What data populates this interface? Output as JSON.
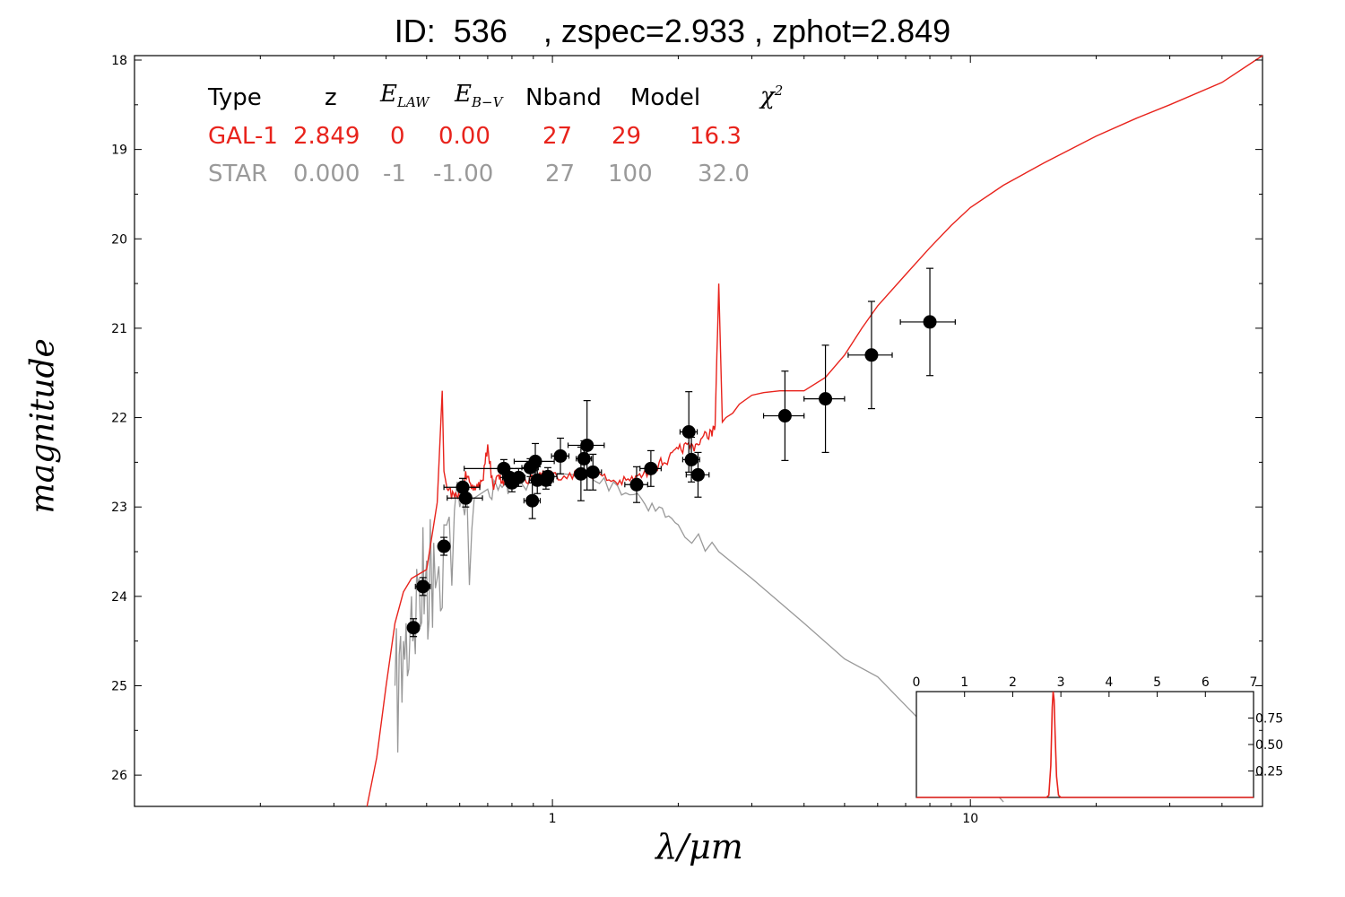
{
  "header": {
    "title": "ID:  536    , zspec=2.933 , zphot=2.849"
  },
  "legend": {
    "headers": [
      "Type",
      "z",
      "E",
      "LAW",
      "E",
      "B−V",
      "Nband",
      "Model",
      "χ",
      "2"
    ],
    "rows": [
      {
        "name": "gal",
        "cells": [
          "GAL-1",
          "2.849",
          "0",
          "0.00",
          "27",
          "29",
          "16.3"
        ],
        "color": "#e8231c"
      },
      {
        "name": "star",
        "cells": [
          "STAR",
          "0.000",
          "-1",
          "-1.00",
          "27",
          "100",
          "32.0"
        ],
        "color": "#9a9a9a"
      }
    ]
  },
  "chart_data": [
    {
      "type": "scatter",
      "title": "ID:  536    , zspec=2.933 , zphot=2.849",
      "xlabel": "λ/μm",
      "ylabel": "magnitude",
      "xscale": "log",
      "xlim": [
        0.1,
        50
      ],
      "ylim": [
        26.35,
        17.95
      ],
      "x_ticks": [
        "1",
        "10"
      ],
      "y_ticks": [
        "18",
        "19",
        "20",
        "21",
        "22",
        "23",
        "24",
        "25",
        "26"
      ],
      "series": [
        {
          "name": "GAL-1",
          "kind": "line",
          "color": "#e8231c",
          "x": [
            0.36,
            0.38,
            0.4,
            0.42,
            0.44,
            0.46,
            0.48,
            0.5,
            0.52,
            0.53,
            0.545,
            0.55,
            0.56,
            0.58,
            0.6,
            0.62,
            0.64,
            0.66,
            0.68,
            0.7,
            0.72,
            0.74,
            0.76,
            0.78,
            0.8,
            0.85,
            0.9,
            0.95,
            1.0,
            1.1,
            1.2,
            1.3,
            1.4,
            1.5,
            1.6,
            1.7,
            1.8,
            1.9,
            2.0,
            2.1,
            2.2,
            2.3,
            2.4,
            2.45,
            2.5,
            2.55,
            2.6,
            2.7,
            2.8,
            3.0,
            3.2,
            3.5,
            4.0,
            4.5,
            5.0,
            5.5,
            6.0,
            7.0,
            8.0,
            9.0,
            10.0,
            12.0,
            15.0,
            20.0,
            25.0,
            30.0,
            40.0,
            50.0
          ],
          "y": [
            26.4,
            25.8,
            25.0,
            24.3,
            23.95,
            23.8,
            23.75,
            23.7,
            23.2,
            22.95,
            21.7,
            22.6,
            22.8,
            22.85,
            22.88,
            22.6,
            22.8,
            22.75,
            22.7,
            22.3,
            22.75,
            22.65,
            22.7,
            22.7,
            22.62,
            22.7,
            22.65,
            22.6,
            22.62,
            22.62,
            22.6,
            22.63,
            22.7,
            22.7,
            22.65,
            22.6,
            22.5,
            22.45,
            22.35,
            22.3,
            22.3,
            22.2,
            22.15,
            22.1,
            20.5,
            22.05,
            22.0,
            21.95,
            21.85,
            21.75,
            21.72,
            21.7,
            21.7,
            21.55,
            21.3,
            21.0,
            20.75,
            20.4,
            20.1,
            19.85,
            19.65,
            19.4,
            19.15,
            18.85,
            18.65,
            18.5,
            18.25,
            17.95
          ]
        },
        {
          "name": "STAR",
          "kind": "line",
          "color": "#999999",
          "x": [
            0.42,
            0.44,
            0.46,
            0.48,
            0.5,
            0.52,
            0.55,
            0.6,
            0.65,
            0.7,
            0.75,
            0.8,
            0.9,
            1.0,
            1.2,
            1.4,
            1.6,
            1.8,
            2.0,
            2.5,
            3.0,
            4.0,
            5.0,
            6.0,
            8.0,
            10.0,
            12.0
          ],
          "y": [
            25.0,
            24.5,
            24.0,
            23.8,
            23.6,
            23.4,
            23.2,
            23.0,
            22.9,
            22.8,
            22.75,
            22.7,
            22.65,
            22.62,
            22.65,
            22.72,
            22.85,
            23.0,
            23.2,
            23.5,
            23.8,
            24.3,
            24.7,
            24.9,
            25.5,
            25.9,
            26.3
          ]
        },
        {
          "name": "observed",
          "kind": "points",
          "color": "#000000",
          "points": [
            {
              "x": 0.465,
              "y": 24.35,
              "xerr": 0.01,
              "yerr": 0.1
            },
            {
              "x": 0.49,
              "y": 23.89,
              "xerr": 0.02,
              "yerr": 0.1
            },
            {
              "x": 0.55,
              "y": 23.44,
              "xerr": 0.015,
              "yerr": 0.1
            },
            {
              "x": 0.61,
              "y": 22.78,
              "xerr": 0.06,
              "yerr": 0.1
            },
            {
              "x": 0.62,
              "y": 22.9,
              "xerr": 0.06,
              "yerr": 0.1
            },
            {
              "x": 0.765,
              "y": 22.57,
              "xerr": 0.15,
              "yerr": 0.1
            },
            {
              "x": 0.79,
              "y": 22.67,
              "xerr": 0.03,
              "yerr": 0.1
            },
            {
              "x": 0.8,
              "y": 22.73,
              "xerr": 0.03,
              "yerr": 0.1
            },
            {
              "x": 0.83,
              "y": 22.67,
              "xerr": 0.03,
              "yerr": 0.1
            },
            {
              "x": 0.885,
              "y": 22.56,
              "xerr": 0.04,
              "yerr": 0.1
            },
            {
              "x": 0.895,
              "y": 22.93,
              "xerr": 0.04,
              "yerr": 0.2
            },
            {
              "x": 0.91,
              "y": 22.49,
              "xerr": 0.1,
              "yerr": 0.2
            },
            {
              "x": 0.92,
              "y": 22.7,
              "xerr": 0.04,
              "yerr": 0.15
            },
            {
              "x": 0.965,
              "y": 22.7,
              "xerr": 0.04,
              "yerr": 0.1
            },
            {
              "x": 0.975,
              "y": 22.66,
              "xerr": 0.05,
              "yerr": 0.1
            },
            {
              "x": 1.045,
              "y": 22.43,
              "xerr": 0.05,
              "yerr": 0.2
            },
            {
              "x": 1.17,
              "y": 22.63,
              "xerr": 0.04,
              "yerr": 0.3
            },
            {
              "x": 1.19,
              "y": 22.46,
              "xerr": 0.05,
              "yerr": 0.2
            },
            {
              "x": 1.21,
              "y": 22.31,
              "xerr": 0.12,
              "yerr": 0.5
            },
            {
              "x": 1.25,
              "y": 22.61,
              "xerr": 0.06,
              "yerr": 0.2
            },
            {
              "x": 1.59,
              "y": 22.75,
              "xerr": 0.1,
              "yerr": 0.2
            },
            {
              "x": 1.72,
              "y": 22.57,
              "xerr": 0.1,
              "yerr": 0.2
            },
            {
              "x": 2.12,
              "y": 22.16,
              "xerr": 0.1,
              "yerr": 0.45
            },
            {
              "x": 2.15,
              "y": 22.47,
              "xerr": 0.1,
              "yerr": 0.25
            },
            {
              "x": 2.23,
              "y": 22.64,
              "xerr": 0.14,
              "yerr": 0.25
            },
            {
              "x": 3.6,
              "y": 21.98,
              "xerr": 0.4,
              "yerr": 0.5
            },
            {
              "x": 4.5,
              "y": 21.79,
              "xerr": 0.5,
              "yerr": 0.6
            },
            {
              "x": 5.8,
              "y": 21.3,
              "xerr": 0.7,
              "yerr": 0.6
            },
            {
              "x": 8.0,
              "y": 20.93,
              "xerr": 1.2,
              "yerr": 0.6
            }
          ]
        }
      ]
    },
    {
      "type": "line",
      "xlim": [
        0,
        7
      ],
      "ylim": [
        0,
        1.0
      ],
      "x_ticks": [
        "0",
        "1",
        "2",
        "3",
        "4",
        "5",
        "6",
        "7"
      ],
      "y_ticks": [
        "0.25",
        "0.50",
        "0.75"
      ],
      "series": [
        {
          "color": "#e8231c",
          "x": [
            0,
            2.7,
            2.75,
            2.79,
            2.82,
            2.84,
            2.86,
            2.88,
            2.91,
            2.95,
            3.0,
            7
          ],
          "y": [
            0,
            0,
            0.02,
            0.3,
            0.85,
            1.0,
            0.92,
            0.6,
            0.2,
            0.02,
            0,
            0
          ]
        }
      ]
    }
  ]
}
